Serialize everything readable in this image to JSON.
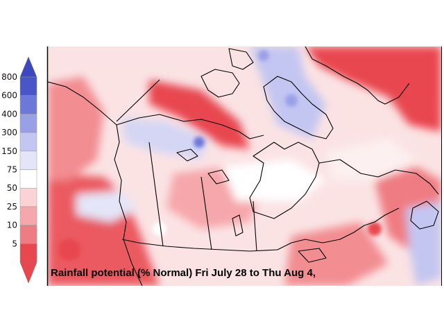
{
  "map": {
    "caption": "Rainfall potential (% Normal)  Fri July 28 to Thu Aug 4,"
  },
  "legend": {
    "tick_labels": [
      "800",
      "600",
      "400",
      "300",
      "150",
      "75",
      "50",
      "25",
      "10",
      "5"
    ],
    "bins": [
      {
        "color": "#4a55c8"
      },
      {
        "color": "#6e78d8"
      },
      {
        "color": "#9aa0e6"
      },
      {
        "color": "#c3c6f1"
      },
      {
        "color": "#e4e5f8"
      },
      {
        "color": "#ffffff"
      },
      {
        "color": "#fbd3d5"
      },
      {
        "color": "#f6a7ab"
      },
      {
        "color": "#ef7c82"
      },
      {
        "color": "#e8474f"
      }
    ],
    "low_arrow_color": "#e8474f",
    "high_arrow_color": "#3d48c0"
  }
}
